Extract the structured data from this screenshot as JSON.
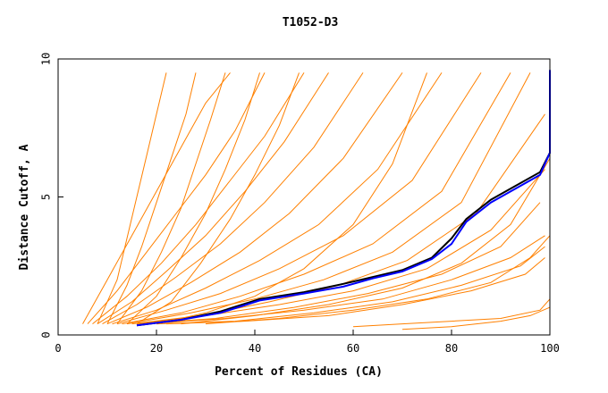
{
  "chart_data": {
    "type": "line",
    "title": "T1052-D3",
    "xlabel": "Percent of Residues (CA)",
    "ylabel": "Distance Cutoff, A",
    "xlim": [
      0,
      100
    ],
    "ylim": [
      0,
      10
    ],
    "x_ticks": [
      0,
      20,
      40,
      60,
      80,
      100
    ],
    "y_ticks": [
      0,
      5,
      10
    ],
    "grid": false,
    "legend": "none",
    "colors": {
      "models": "#ff8000",
      "highlight_black": "#000000",
      "highlight_blue": "#0000ff",
      "frame": "#000000"
    },
    "series": [
      {
        "color": "#ff8000",
        "x": [
          5,
          10,
          15,
          20,
          25,
          30,
          35
        ],
        "y": [
          0.4,
          2.0,
          3.6,
          5.2,
          6.8,
          8.4,
          9.5
        ]
      },
      {
        "color": "#ff8000",
        "x": [
          6,
          12,
          18,
          24,
          30,
          36,
          42
        ],
        "y": [
          0.4,
          1.6,
          3.0,
          4.4,
          5.8,
          7.4,
          9.5
        ]
      },
      {
        "color": "#ff8000",
        "x": [
          7,
          14,
          21,
          28,
          35,
          42,
          50
        ],
        "y": [
          0.4,
          1.4,
          2.6,
          4.0,
          5.6,
          7.2,
          9.5
        ]
      },
      {
        "color": "#ff8000",
        "x": [
          8,
          15,
          22,
          30,
          38,
          46,
          55
        ],
        "y": [
          0.4,
          1.2,
          2.3,
          3.6,
          5.2,
          7.0,
          9.5
        ]
      },
      {
        "color": "#ff8000",
        "x": [
          9,
          16,
          24,
          33,
          42,
          52,
          62
        ],
        "y": [
          0.4,
          1.1,
          2.1,
          3.3,
          4.8,
          6.8,
          9.5
        ]
      },
      {
        "color": "#ff8000",
        "x": [
          10,
          18,
          27,
          37,
          47,
          58,
          70
        ],
        "y": [
          0.4,
          1.0,
          1.9,
          3.0,
          4.4,
          6.4,
          9.5
        ]
      },
      {
        "color": "#ff8000",
        "x": [
          11,
          20,
          30,
          41,
          53,
          65,
          78
        ],
        "y": [
          0.4,
          0.9,
          1.7,
          2.7,
          4.0,
          6.0,
          9.5
        ]
      },
      {
        "color": "#ff8000",
        "x": [
          12,
          22,
          33,
          45,
          58,
          72,
          86
        ],
        "y": [
          0.4,
          0.9,
          1.5,
          2.4,
          3.6,
          5.6,
          9.5
        ]
      },
      {
        "color": "#ff8000",
        "x": [
          13,
          25,
          37,
          50,
          64,
          78,
          92
        ],
        "y": [
          0.4,
          0.8,
          1.4,
          2.2,
          3.3,
          5.2,
          9.5
        ]
      },
      {
        "color": "#ff8000",
        "x": [
          14,
          27,
          40,
          54,
          68,
          82,
          96
        ],
        "y": [
          0.4,
          0.8,
          1.3,
          2.0,
          3.0,
          4.8,
          9.5
        ]
      },
      {
        "color": "#ff8000",
        "x": [
          15,
          29,
          43,
          57,
          71,
          85,
          99
        ],
        "y": [
          0.4,
          0.7,
          1.2,
          1.8,
          2.7,
          4.4,
          8.0
        ]
      },
      {
        "color": "#ff8000",
        "x": [
          16,
          30,
          45,
          60,
          75,
          88,
          99
        ],
        "y": [
          0.4,
          0.7,
          1.1,
          1.6,
          2.4,
          3.8,
          6.0
        ]
      },
      {
        "color": "#ff8000",
        "x": [
          17,
          32,
          48,
          63,
          78,
          90,
          98
        ],
        "y": [
          0.4,
          0.6,
          1.0,
          1.5,
          2.2,
          3.2,
          4.8
        ]
      },
      {
        "color": "#ff8000",
        "x": [
          18,
          34,
          50,
          66,
          80,
          92,
          99
        ],
        "y": [
          0.4,
          0.6,
          0.9,
          1.3,
          2.0,
          2.8,
          3.6
        ]
      },
      {
        "color": "#ff8000",
        "x": [
          20,
          36,
          52,
          68,
          82,
          94,
          99
        ],
        "y": [
          0.4,
          0.5,
          0.8,
          1.2,
          1.8,
          2.5,
          3.2
        ]
      },
      {
        "color": "#ff8000",
        "x": [
          22,
          38,
          55,
          70,
          84,
          95,
          99
        ],
        "y": [
          0.4,
          0.5,
          0.7,
          1.1,
          1.6,
          2.2,
          2.8
        ]
      },
      {
        "color": "#ff8000",
        "x": [
          8,
          12,
          14,
          16,
          18,
          20,
          22
        ],
        "y": [
          0.4,
          2.0,
          3.5,
          5.0,
          6.5,
          8.0,
          9.5
        ]
      },
      {
        "color": "#ff8000",
        "x": [
          10,
          14,
          17,
          20,
          23,
          26,
          28
        ],
        "y": [
          0.4,
          1.8,
          3.2,
          4.8,
          6.4,
          8.0,
          9.5
        ]
      },
      {
        "color": "#ff8000",
        "x": [
          12,
          17,
          21,
          25,
          28,
          31,
          34
        ],
        "y": [
          0.4,
          1.6,
          3.0,
          4.6,
          6.2,
          7.8,
          9.5
        ]
      },
      {
        "color": "#ff8000",
        "x": [
          14,
          20,
          25,
          30,
          34,
          38,
          41
        ],
        "y": [
          0.4,
          1.4,
          2.8,
          4.4,
          6.0,
          7.8,
          9.5
        ]
      },
      {
        "color": "#ff8000",
        "x": [
          16,
          23,
          29,
          35,
          40,
          45,
          49
        ],
        "y": [
          0.4,
          1.2,
          2.6,
          4.2,
          5.8,
          7.6,
          9.5
        ]
      },
      {
        "color": "#ff8000",
        "x": [
          20,
          30,
          40,
          50,
          60,
          68,
          75
        ],
        "y": [
          0.4,
          0.8,
          1.4,
          2.4,
          4.0,
          6.2,
          9.5
        ]
      },
      {
        "color": "#ff8000",
        "x": [
          25,
          40,
          55,
          70,
          82,
          92,
          100
        ],
        "y": [
          0.4,
          0.7,
          1.1,
          1.7,
          2.6,
          4.0,
          6.4
        ]
      },
      {
        "color": "#ff8000",
        "x": [
          30,
          45,
          60,
          75,
          88,
          96,
          100
        ],
        "y": [
          0.4,
          0.6,
          0.9,
          1.3,
          1.9,
          2.8,
          3.6
        ]
      },
      {
        "color": "#ff8000",
        "x": [
          60,
          70,
          80,
          90,
          98,
          100
        ],
        "y": [
          0.3,
          0.4,
          0.5,
          0.6,
          0.9,
          1.3
        ]
      },
      {
        "color": "#ff8000",
        "x": [
          70,
          80,
          90,
          96,
          100
        ],
        "y": [
          0.2,
          0.3,
          0.5,
          0.7,
          1.0
        ]
      },
      {
        "color": "#000000",
        "x": [
          16,
          25,
          33,
          41,
          50,
          58,
          64,
          70,
          76,
          80,
          83,
          88,
          93,
          98,
          100
        ],
        "y": [
          0.35,
          0.55,
          0.85,
          1.3,
          1.55,
          1.85,
          2.1,
          2.35,
          2.8,
          3.5,
          4.2,
          4.9,
          5.4,
          5.9,
          6.6
        ]
      },
      {
        "color": "#0000ff",
        "x": [
          16,
          25,
          33,
          41,
          50,
          58,
          64,
          70,
          76,
          80,
          83,
          88,
          93,
          98,
          100,
          100
        ],
        "y": [
          0.35,
          0.55,
          0.8,
          1.25,
          1.5,
          1.75,
          2.05,
          2.3,
          2.75,
          3.3,
          4.1,
          4.8,
          5.3,
          5.8,
          6.6,
          9.6
        ]
      }
    ]
  }
}
